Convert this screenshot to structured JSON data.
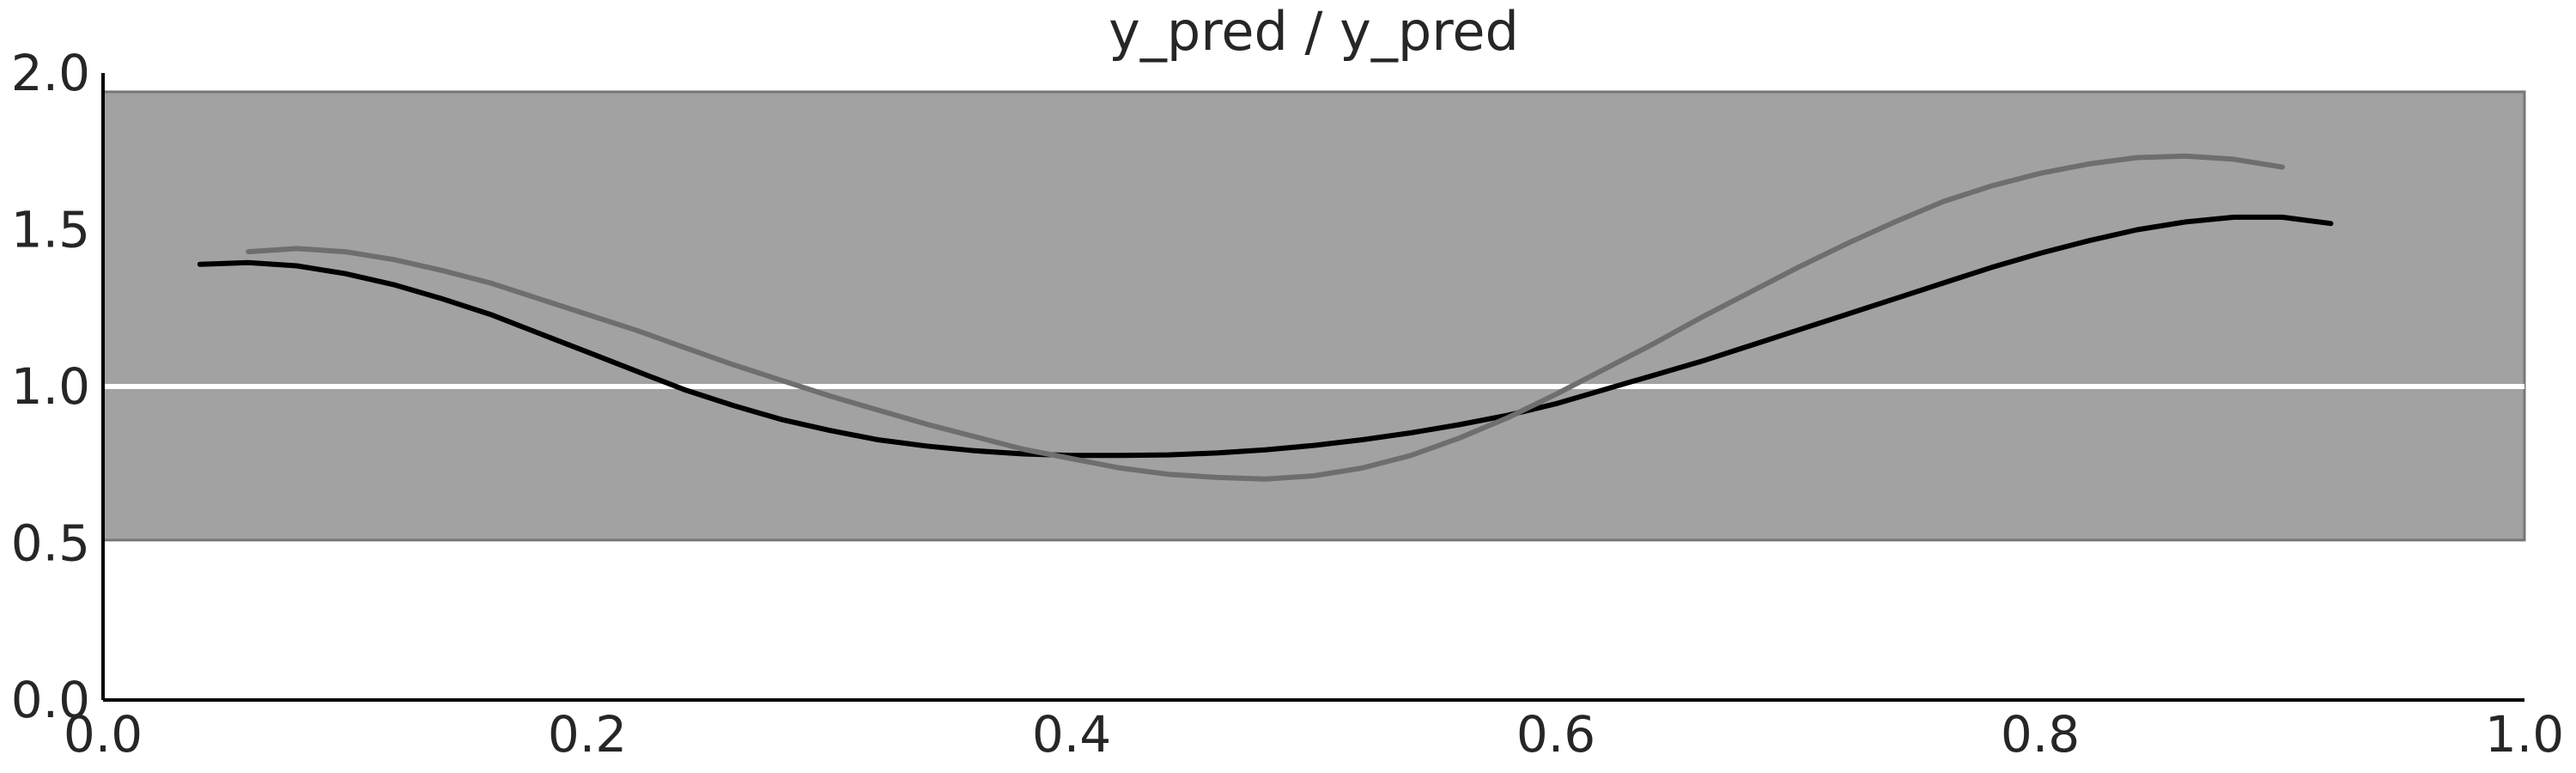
{
  "chart_data": {
    "type": "line",
    "title": "y_pred / y_pred",
    "xlabel": "",
    "ylabel": "",
    "xlim": [
      0.0,
      1.0
    ],
    "ylim": [
      0.0,
      2.0
    ],
    "x_ticks": [
      "0.0",
      "0.2",
      "0.4",
      "0.6",
      "0.8",
      "1.0"
    ],
    "y_ticks": [
      "0.0",
      "0.5",
      "1.0",
      "1.5",
      "2.0"
    ],
    "grid": false,
    "band": {
      "y_low": 0.51,
      "y_high": 1.94,
      "color": "#a2a2a2",
      "edge_color": "#777777"
    },
    "reference_line": {
      "y": 1.0,
      "color": "#ffffff"
    },
    "series": [
      {
        "color": "#000000",
        "x": [
          0.04,
          0.06,
          0.08,
          0.1,
          0.12,
          0.14,
          0.16,
          0.18,
          0.2,
          0.22,
          0.24,
          0.26,
          0.28,
          0.3,
          0.32,
          0.34,
          0.36,
          0.38,
          0.4,
          0.42,
          0.44,
          0.46,
          0.48,
          0.5,
          0.52,
          0.54,
          0.56,
          0.58,
          0.6,
          0.62,
          0.64,
          0.66,
          0.68,
          0.7,
          0.72,
          0.74,
          0.76,
          0.78,
          0.8,
          0.82,
          0.84,
          0.86,
          0.88,
          0.9,
          0.92
        ],
        "y": [
          1.39,
          1.395,
          1.385,
          1.36,
          1.325,
          1.28,
          1.23,
          1.17,
          1.11,
          1.05,
          0.99,
          0.94,
          0.895,
          0.86,
          0.83,
          0.81,
          0.795,
          0.785,
          0.78,
          0.78,
          0.782,
          0.788,
          0.798,
          0.812,
          0.83,
          0.852,
          0.878,
          0.908,
          0.945,
          0.99,
          1.035,
          1.08,
          1.13,
          1.18,
          1.23,
          1.28,
          1.33,
          1.38,
          1.425,
          1.465,
          1.5,
          1.525,
          1.54,
          1.54,
          1.52
        ]
      },
      {
        "color": "#6e6e6e",
        "x": [
          0.06,
          0.08,
          0.1,
          0.12,
          0.14,
          0.16,
          0.18,
          0.2,
          0.22,
          0.24,
          0.26,
          0.28,
          0.3,
          0.32,
          0.34,
          0.36,
          0.38,
          0.4,
          0.42,
          0.44,
          0.46,
          0.48,
          0.5,
          0.52,
          0.54,
          0.56,
          0.58,
          0.6,
          0.62,
          0.64,
          0.66,
          0.68,
          0.7,
          0.72,
          0.74,
          0.76,
          0.78,
          0.8,
          0.82,
          0.84,
          0.86,
          0.88,
          0.9
        ],
        "y": [
          1.43,
          1.44,
          1.43,
          1.405,
          1.37,
          1.33,
          1.28,
          1.23,
          1.18,
          1.125,
          1.07,
          1.02,
          0.97,
          0.925,
          0.88,
          0.84,
          0.8,
          0.77,
          0.74,
          0.72,
          0.71,
          0.705,
          0.715,
          0.74,
          0.78,
          0.835,
          0.9,
          0.975,
          1.055,
          1.135,
          1.22,
          1.3,
          1.38,
          1.455,
          1.525,
          1.59,
          1.64,
          1.68,
          1.71,
          1.73,
          1.735,
          1.725,
          1.7
        ]
      }
    ]
  }
}
